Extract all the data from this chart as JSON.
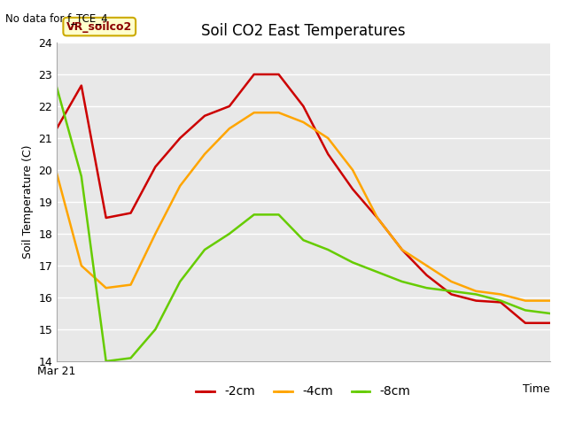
{
  "title": "Soil CO2 East Temperatures",
  "top_left_note": "No data for f_TCE_4",
  "xlabel": "Time",
  "ylabel": "Soil Temperature (C)",
  "ylim": [
    14.0,
    24.0
  ],
  "yticks": [
    14.0,
    15.0,
    16.0,
    17.0,
    18.0,
    19.0,
    20.0,
    21.0,
    22.0,
    23.0,
    24.0
  ],
  "x_start_label": "Mar 21",
  "legend_label": "VR_soilco2",
  "fig_bg_color": "#ffffff",
  "axes_bg_color": "#e8e8e8",
  "series": {
    "-2cm": {
      "color": "#cc0000",
      "x": [
        0,
        1,
        2,
        3,
        4,
        5,
        6,
        7,
        8,
        9,
        10,
        11,
        12,
        13,
        14,
        15,
        16,
        17,
        18,
        19,
        20
      ],
      "y": [
        21.3,
        22.65,
        18.5,
        18.65,
        20.1,
        21.0,
        21.7,
        22.0,
        23.0,
        23.0,
        22.0,
        20.5,
        19.4,
        18.5,
        17.5,
        16.7,
        16.1,
        15.9,
        15.85,
        15.2,
        15.2
      ]
    },
    "-4cm": {
      "color": "#ffa500",
      "x": [
        0,
        1,
        2,
        3,
        4,
        5,
        6,
        7,
        8,
        9,
        10,
        11,
        12,
        13,
        14,
        15,
        16,
        17,
        18,
        19,
        20
      ],
      "y": [
        19.9,
        17.0,
        16.3,
        16.4,
        18.0,
        19.5,
        20.5,
        21.3,
        21.8,
        21.8,
        21.5,
        21.0,
        20.0,
        18.5,
        17.5,
        17.0,
        16.5,
        16.2,
        16.1,
        15.9,
        15.9
      ]
    },
    "-8cm": {
      "color": "#66cc00",
      "x": [
        0,
        1,
        2,
        3,
        4,
        5,
        6,
        7,
        8,
        9,
        10,
        11,
        12,
        13,
        14,
        15,
        16,
        17,
        18,
        19,
        20
      ],
      "y": [
        22.6,
        19.8,
        14.0,
        14.1,
        15.0,
        16.5,
        17.5,
        18.0,
        18.6,
        18.6,
        17.8,
        17.5,
        17.1,
        16.8,
        16.5,
        16.3,
        16.2,
        16.1,
        15.9,
        15.6,
        15.5
      ]
    }
  }
}
